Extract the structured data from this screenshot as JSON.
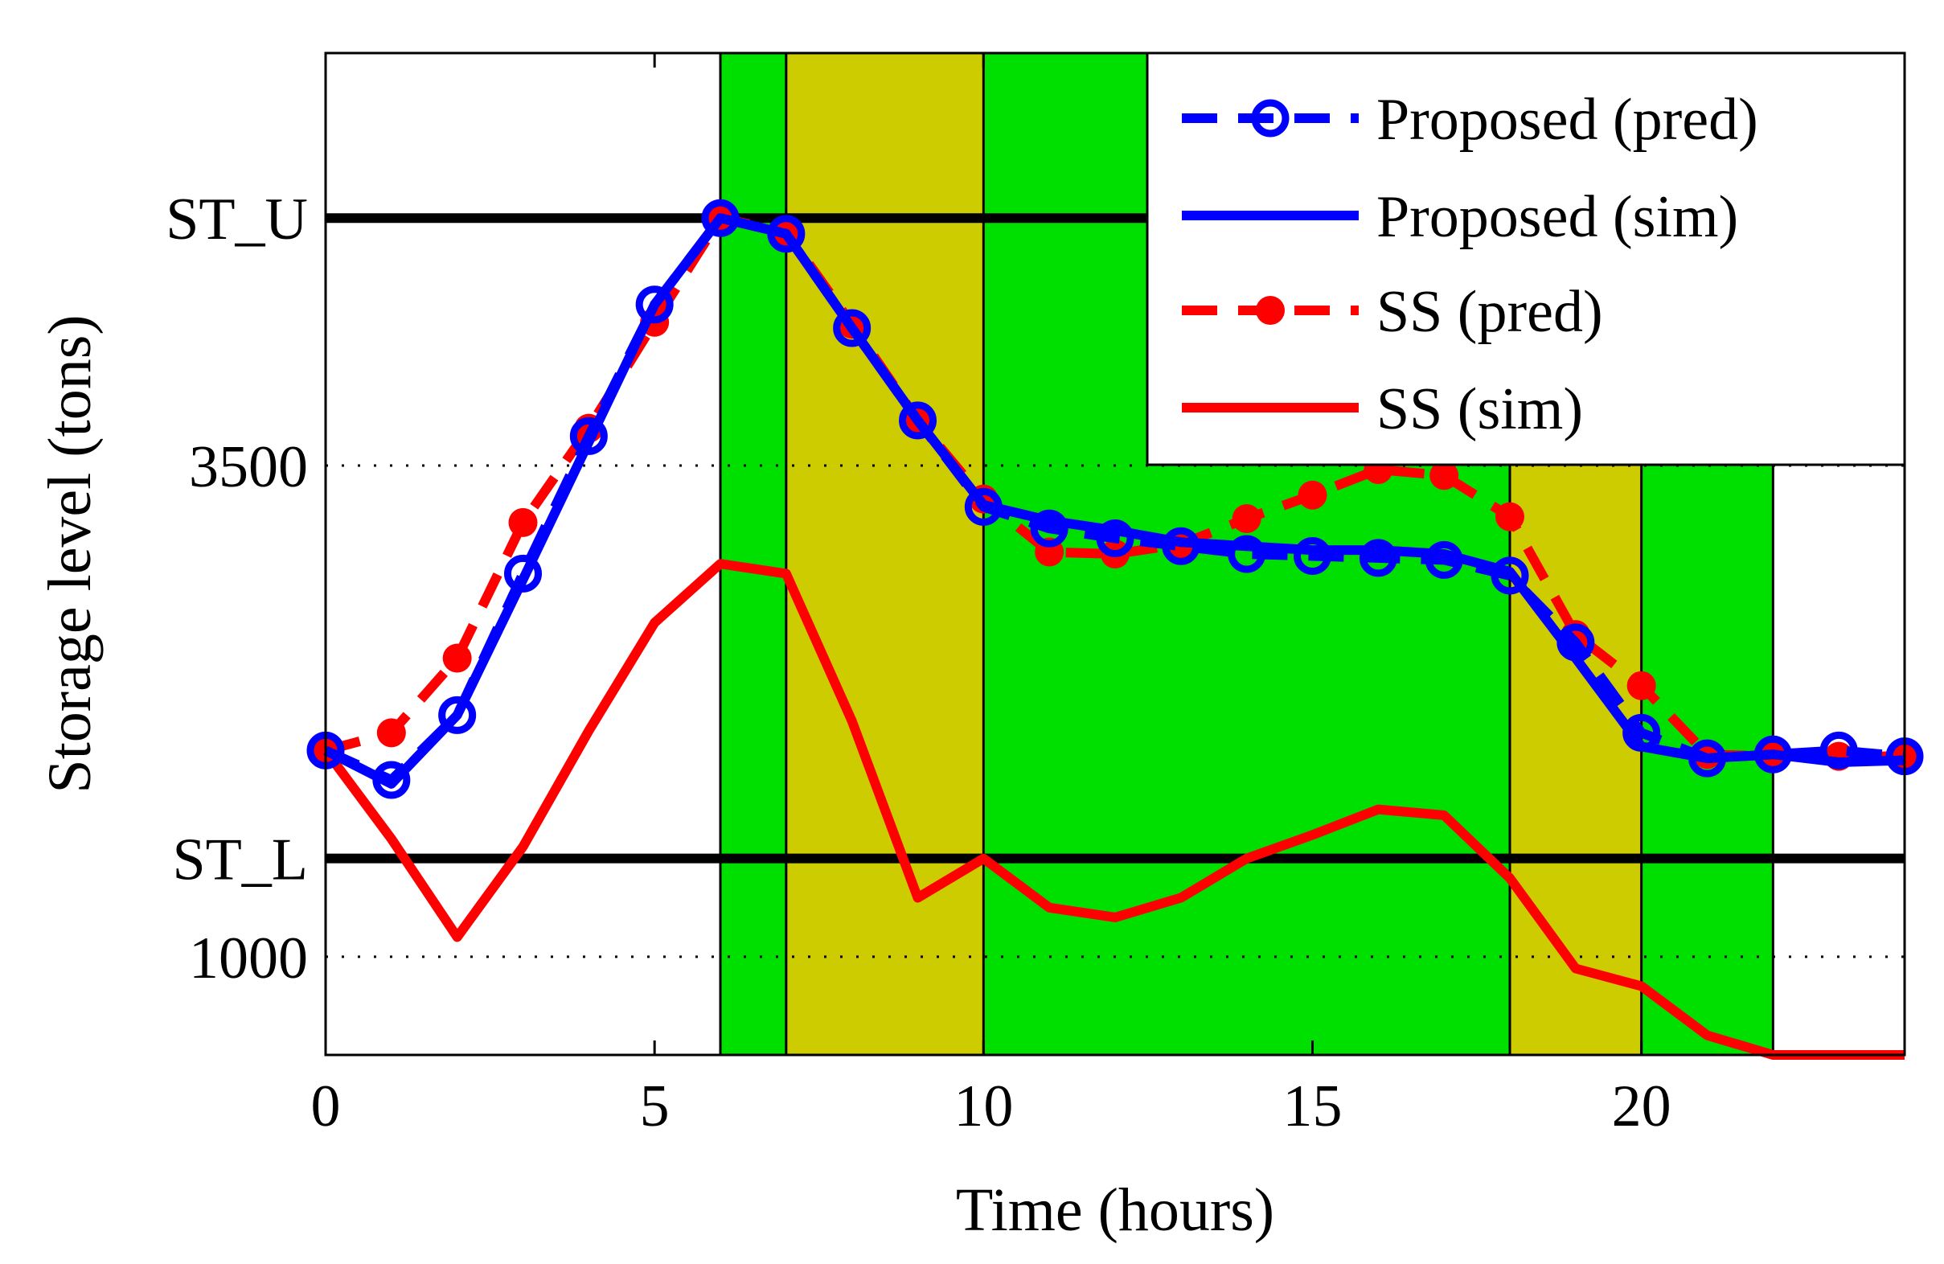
{
  "chart_data": {
    "type": "line",
    "title": "",
    "xlabel": "Time (hours)",
    "ylabel": "Storage level (tons)",
    "xlim": [
      0,
      24
    ],
    "ylim": [
      500,
      5600
    ],
    "xticks": [
      0,
      5,
      10,
      15,
      20
    ],
    "xtick_labels": [
      "0",
      "5",
      "10",
      "15",
      "20"
    ],
    "yticks": [
      1000,
      3500
    ],
    "ytick_labels": [
      "1000",
      "3500"
    ],
    "reference_lines": [
      {
        "name": "ST_U",
        "label": "ST_U",
        "value": 4760
      },
      {
        "name": "ST_L",
        "label": "ST_L",
        "value": 1500
      }
    ],
    "bands": [
      {
        "start": 6,
        "end": 7,
        "color": "#00e000"
      },
      {
        "start": 7,
        "end": 10,
        "color": "#cccc00"
      },
      {
        "start": 10,
        "end": 18,
        "color": "#00e000"
      },
      {
        "start": 18,
        "end": 20,
        "color": "#cccc00"
      },
      {
        "start": 20,
        "end": 22,
        "color": "#00e000"
      }
    ],
    "band_dividers": [
      6,
      7,
      10,
      18,
      20,
      22
    ],
    "series": [
      {
        "name": "Proposed (pred)",
        "style": "dashed-open-circle",
        "color": "#0000ff",
        "x": [
          0,
          1,
          2,
          3,
          4,
          5,
          6,
          7,
          8,
          9,
          10,
          11,
          12,
          13,
          14,
          15,
          16,
          17,
          18,
          19,
          20,
          21,
          22,
          23,
          24
        ],
        "values": [
          2050,
          1900,
          2230,
          2950,
          3650,
          4320,
          4760,
          4680,
          4200,
          3730,
          3290,
          3180,
          3130,
          3090,
          3050,
          3040,
          3030,
          3020,
          2940,
          2600,
          2140,
          2010,
          2030,
          2050,
          2020
        ]
      },
      {
        "name": "Proposed (sim)",
        "style": "solid",
        "color": "#0000ff",
        "x": [
          0,
          1,
          2,
          3,
          4,
          5,
          6,
          7,
          8,
          9,
          10,
          11,
          12,
          13,
          14,
          15,
          16,
          17,
          18,
          19,
          20,
          21,
          22,
          23,
          24
        ],
        "values": [
          2050,
          1880,
          2230,
          2920,
          3620,
          4320,
          4760,
          4680,
          4200,
          3730,
          3300,
          3220,
          3170,
          3110,
          3090,
          3070,
          3070,
          3050,
          2960,
          2520,
          2070,
          2010,
          2030,
          1990,
          2000
        ]
      },
      {
        "name": "SS (pred)",
        "style": "dashed-filled-dot",
        "color": "#ff0000",
        "x": [
          0,
          1,
          2,
          3,
          4,
          5,
          6,
          7,
          8,
          9,
          10,
          11,
          12,
          13,
          14,
          15,
          16,
          17,
          18,
          19,
          20,
          21,
          22,
          23,
          24
        ],
        "values": [
          2050,
          2140,
          2520,
          3210,
          3690,
          4230,
          4760,
          4690,
          4220,
          3730,
          3330,
          3060,
          3050,
          3100,
          3230,
          3350,
          3480,
          3450,
          3240,
          2640,
          2380,
          2030,
          2020,
          2020,
          2020
        ]
      },
      {
        "name": "SS (sim)",
        "style": "solid",
        "color": "#ff0000",
        "x": [
          0,
          1,
          2,
          3,
          4,
          5,
          6,
          7,
          8,
          9,
          10,
          11,
          12,
          13,
          14,
          15,
          16,
          17,
          18,
          19,
          20,
          21,
          22,
          23,
          24
        ],
        "values": [
          2050,
          1600,
          1100,
          1560,
          2150,
          2700,
          3000,
          2950,
          2200,
          1300,
          1500,
          1250,
          1200,
          1300,
          1500,
          1620,
          1750,
          1720,
          1400,
          940,
          850,
          600,
          500,
          500,
          500
        ]
      }
    ],
    "legend": {
      "position": "top-right",
      "entries": [
        "Proposed (pred)",
        "Proposed (sim)",
        "SS (pred)",
        "SS (sim)"
      ]
    }
  }
}
